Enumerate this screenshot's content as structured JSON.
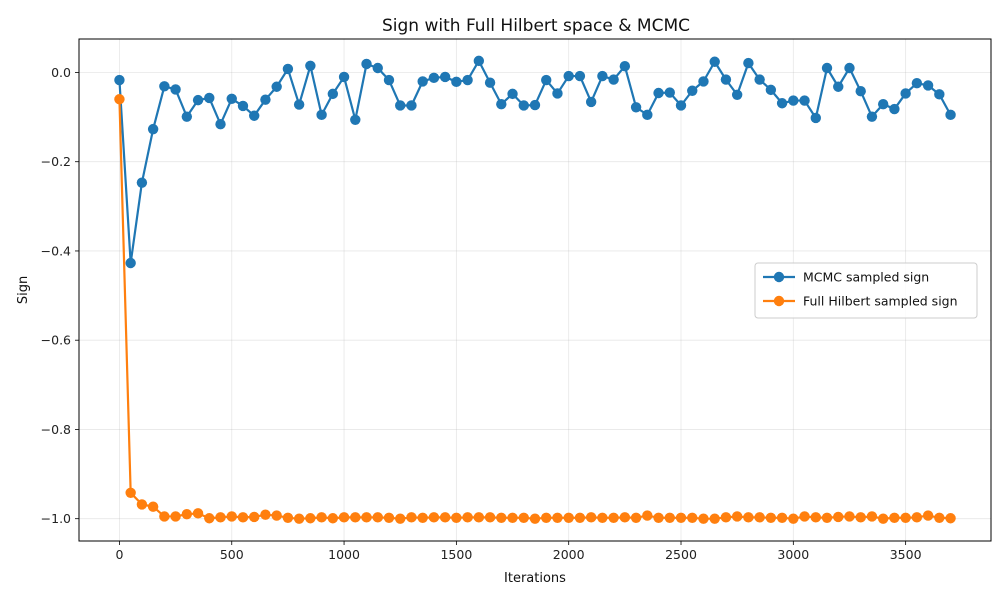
{
  "chart_data": {
    "type": "line",
    "title": "Sign with Full Hilbert space & MCMC",
    "xlabel": "Iterations",
    "ylabel": "Sign",
    "xlim": [
      -180,
      3880
    ],
    "ylim": [
      -1.05,
      0.075
    ],
    "xticks": [
      0,
      500,
      1000,
      1500,
      2000,
      2500,
      3000,
      3500
    ],
    "xtick_labels": [
      "0",
      "500",
      "1000",
      "1500",
      "2000",
      "2500",
      "3000",
      "3500"
    ],
    "yticks": [
      0.0,
      -0.2,
      -0.4,
      -0.6,
      -0.8,
      -1.0
    ],
    "ytick_labels": [
      "0.0",
      "−0.2",
      "−0.4",
      "−0.6",
      "−0.8",
      "−1.0"
    ],
    "grid": true,
    "legend_position": "center-right",
    "x": [
      0,
      50,
      100,
      150,
      200,
      250,
      300,
      350,
      400,
      450,
      500,
      550,
      600,
      650,
      700,
      750,
      800,
      850,
      900,
      950,
      1000,
      1050,
      1100,
      1150,
      1200,
      1250,
      1300,
      1350,
      1400,
      1450,
      1500,
      1550,
      1600,
      1650,
      1700,
      1750,
      1800,
      1850,
      1900,
      1950,
      2000,
      2050,
      2100,
      2150,
      2200,
      2250,
      2300,
      2350,
      2400,
      2450,
      2500,
      2550,
      2600,
      2650,
      2700,
      2750,
      2800,
      2850,
      2900,
      2950,
      3000,
      3050,
      3100,
      3150,
      3200,
      3250,
      3300,
      3350,
      3400,
      3450,
      3500,
      3550,
      3600,
      3650,
      3700
    ],
    "series": [
      {
        "name": "MCMC sampled sign",
        "color": "#1f77b4",
        "values": [
          -0.017,
          -0.427,
          -0.247,
          -0.127,
          -0.031,
          -0.038,
          -0.099,
          -0.062,
          -0.057,
          -0.116,
          -0.059,
          -0.075,
          -0.097,
          -0.061,
          -0.032,
          0.008,
          -0.072,
          0.015,
          -0.095,
          -0.048,
          -0.01,
          -0.106,
          0.019,
          0.01,
          -0.017,
          -0.074,
          -0.074,
          -0.02,
          -0.012,
          -0.01,
          -0.021,
          -0.017,
          0.026,
          -0.023,
          -0.071,
          -0.048,
          -0.074,
          -0.073,
          -0.017,
          -0.047,
          -0.008,
          -0.008,
          -0.066,
          -0.008,
          -0.016,
          0.014,
          -0.078,
          -0.095,
          -0.046,
          -0.045,
          -0.074,
          -0.041,
          -0.02,
          0.024,
          -0.016,
          -0.05,
          0.021,
          -0.016,
          -0.039,
          -0.069,
          -0.063,
          -0.063,
          -0.102,
          0.01,
          -0.032,
          0.01,
          -0.042,
          -0.099,
          -0.071,
          -0.082,
          -0.047,
          -0.024,
          -0.029,
          -0.049,
          -0.095
        ]
      },
      {
        "name": "Full Hilbert sampled sign",
        "color": "#ff7f0e",
        "values": [
          -0.06,
          -0.942,
          -0.968,
          -0.973,
          -0.995,
          -0.995,
          -0.99,
          -0.988,
          -0.999,
          -0.997,
          -0.995,
          -0.997,
          -0.996,
          -0.991,
          -0.993,
          -0.998,
          -1.0,
          -0.999,
          -0.997,
          -0.999,
          -0.997,
          -0.997,
          -0.997,
          -0.997,
          -0.998,
          -1.0,
          -0.997,
          -0.998,
          -0.997,
          -0.997,
          -0.998,
          -0.997,
          -0.997,
          -0.997,
          -0.998,
          -0.998,
          -0.998,
          -1.0,
          -0.998,
          -0.998,
          -0.998,
          -0.998,
          -0.997,
          -0.998,
          -0.998,
          -0.997,
          -0.998,
          -0.993,
          -0.998,
          -0.998,
          -0.998,
          -0.998,
          -1.0,
          -1.0,
          -0.997,
          -0.995,
          -0.997,
          -0.997,
          -0.998,
          -0.998,
          -1.0,
          -0.995,
          -0.997,
          -0.998,
          -0.996,
          -0.995,
          -0.997,
          -0.995,
          -1.0,
          -0.998,
          -0.998,
          -0.997,
          -0.993,
          -0.998,
          -0.999
        ]
      }
    ]
  }
}
